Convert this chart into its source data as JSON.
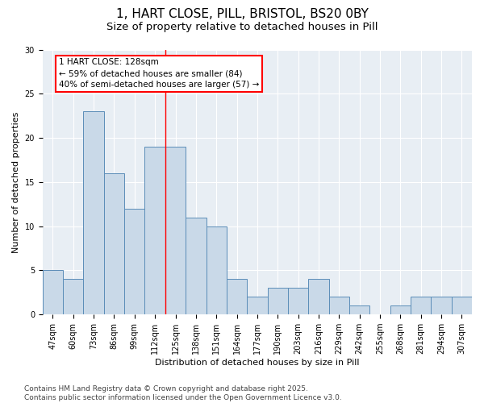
{
  "title_line1": "1, HART CLOSE, PILL, BRISTOL, BS20 0BY",
  "title_line2": "Size of property relative to detached houses in Pill",
  "xlabel": "Distribution of detached houses by size in Pill",
  "ylabel": "Number of detached properties",
  "bar_labels": [
    "47sqm",
    "60sqm",
    "73sqm",
    "86sqm",
    "99sqm",
    "112sqm",
    "125sqm",
    "138sqm",
    "151sqm",
    "164sqm",
    "177sqm",
    "190sqm",
    "203sqm",
    "216sqm",
    "229sqm",
    "242sqm",
    "255sqm",
    "268sqm",
    "281sqm",
    "294sqm",
    "307sqm"
  ],
  "bar_values": [
    5,
    4,
    23,
    16,
    12,
    19,
    19,
    11,
    10,
    4,
    2,
    3,
    3,
    4,
    2,
    1,
    0,
    1,
    2,
    2,
    2
  ],
  "bar_color": "#c9d9e8",
  "bar_edge_color": "#5b8db8",
  "annotation_text": "1 HART CLOSE: 128sqm\n← 59% of detached houses are smaller (84)\n40% of semi-detached houses are larger (57) →",
  "annotation_box_color": "white",
  "annotation_box_edge_color": "red",
  "vline_color": "red",
  "ylim": [
    0,
    30
  ],
  "yticks": [
    0,
    5,
    10,
    15,
    20,
    25,
    30
  ],
  "background_color": "#e8eef4",
  "footer_text": "Contains HM Land Registry data © Crown copyright and database right 2025.\nContains public sector information licensed under the Open Government Licence v3.0.",
  "title_fontsize": 11,
  "subtitle_fontsize": 9.5,
  "axis_label_fontsize": 8,
  "tick_fontsize": 7,
  "annotation_fontsize": 7.5,
  "footer_fontsize": 6.5
}
